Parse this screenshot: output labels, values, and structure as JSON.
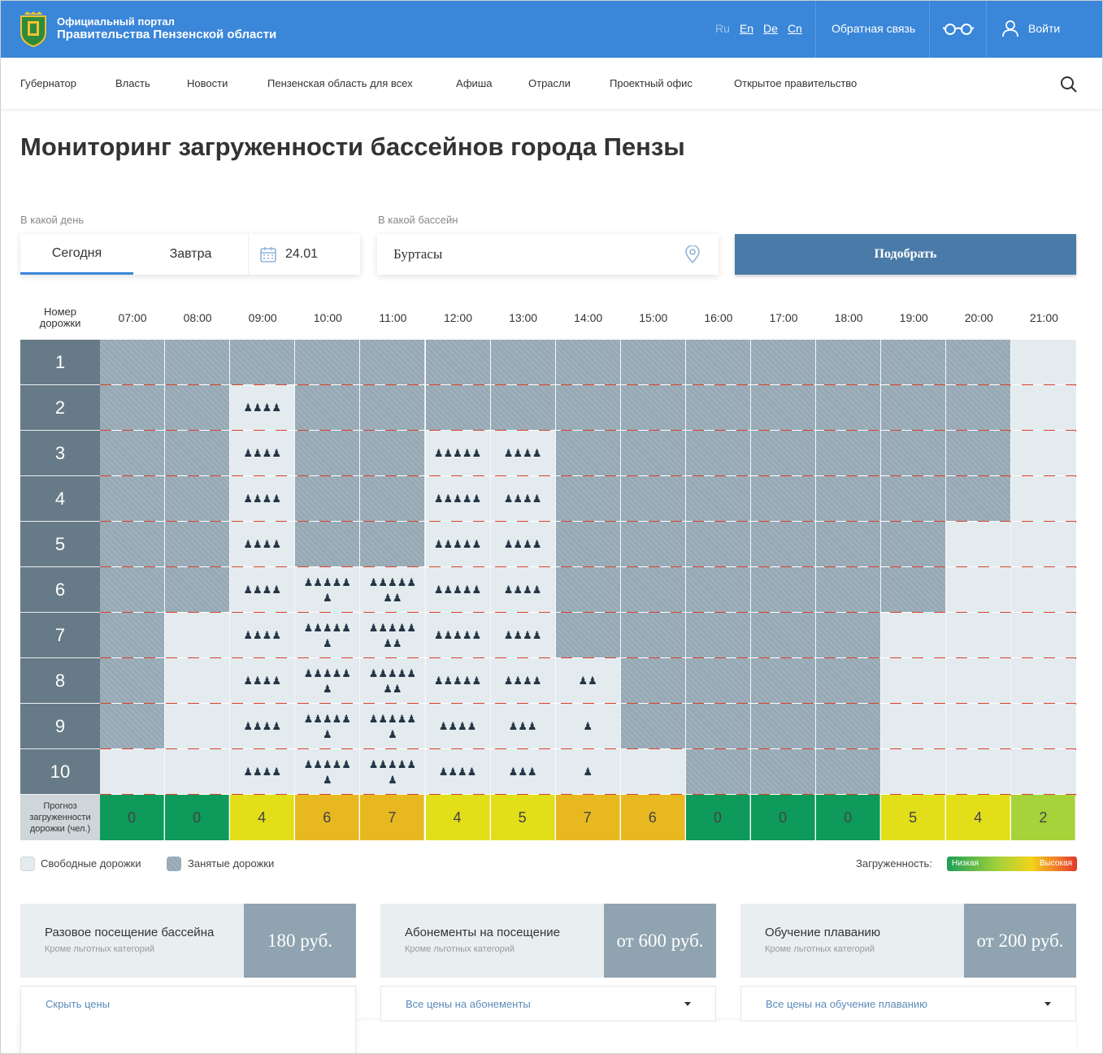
{
  "header": {
    "brand_line1": "Официальный портал",
    "brand_line2": "Правительства Пензенской области",
    "langs": [
      "Ru",
      "En",
      "De",
      "Cn"
    ],
    "feedback": "Обратная связь",
    "login": "Войти"
  },
  "nav": [
    "Губернатор",
    "Власть",
    "Новости",
    "Пензенская область для всех",
    "Афиша",
    "Отрасли",
    "Проектный офис",
    "Открытое правительство"
  ],
  "page_title": "Мониторинг загруженности бассейнов города Пензы",
  "filters": {
    "day_label": "В какой день",
    "today": "Сегодня",
    "tomorrow": "Завтра",
    "date": "24.01",
    "pool_label": "В какой бассейн",
    "pool_value": "Буртасы",
    "submit": "Подобрать"
  },
  "schedule": {
    "lane_header": [
      "Номер",
      "дорожки"
    ],
    "hours": [
      "07:00",
      "08:00",
      "09:00",
      "10:00",
      "11:00",
      "12:00",
      "13:00",
      "14:00",
      "15:00",
      "16:00",
      "17:00",
      "18:00",
      "19:00",
      "20:00",
      "21:00"
    ],
    "lanes": [
      "1",
      "2",
      "3",
      "4",
      "5",
      "6",
      "7",
      "8",
      "9",
      "10"
    ],
    "cells": [
      [
        -1,
        -1,
        -1,
        -1,
        -1,
        -1,
        -1,
        -1,
        -1,
        -1,
        -1,
        -1,
        -1,
        -1,
        0
      ],
      [
        -1,
        -1,
        4,
        -1,
        -1,
        -1,
        -1,
        -1,
        -1,
        -1,
        -1,
        -1,
        -1,
        -1,
        0
      ],
      [
        -1,
        -1,
        4,
        -1,
        -1,
        5,
        4,
        -1,
        -1,
        -1,
        -1,
        -1,
        -1,
        -1,
        0
      ],
      [
        -1,
        -1,
        4,
        -1,
        -1,
        5,
        4,
        -1,
        -1,
        -1,
        -1,
        -1,
        -1,
        -1,
        0
      ],
      [
        -1,
        -1,
        4,
        -1,
        -1,
        5,
        4,
        -1,
        -1,
        -1,
        -1,
        -1,
        -1,
        0,
        0
      ],
      [
        -1,
        -1,
        4,
        6,
        7,
        5,
        4,
        -1,
        -1,
        -1,
        -1,
        -1,
        -1,
        0,
        0
      ],
      [
        -1,
        0,
        4,
        6,
        7,
        5,
        4,
        -1,
        -1,
        -1,
        -1,
        -1,
        0,
        0,
        0
      ],
      [
        -1,
        0,
        4,
        6,
        7,
        5,
        4,
        2,
        -1,
        -1,
        -1,
        -1,
        0,
        0,
        0
      ],
      [
        -1,
        0,
        4,
        6,
        6,
        4,
        3,
        1,
        -1,
        -1,
        -1,
        -1,
        0,
        0,
        0
      ],
      [
        0,
        0,
        4,
        6,
        6,
        4,
        3,
        1,
        0,
        -1,
        -1,
        -1,
        0,
        0,
        0
      ]
    ],
    "forecast_label": [
      "Прогноз",
      "загруженности",
      "дорожки (чел.)"
    ],
    "forecast": [
      0,
      0,
      4,
      6,
      7,
      4,
      5,
      7,
      6,
      0,
      0,
      0,
      5,
      4,
      2
    ],
    "forecast_colors": [
      "#0e9a5a",
      "#0e9a5a",
      "#e2de1a",
      "#e8b820",
      "#e8b820",
      "#e2de1a",
      "#e2de1a",
      "#e8b820",
      "#e8b820",
      "#0e9a5a",
      "#0e9a5a",
      "#0e9a5a",
      "#e2de1a",
      "#e2de1a",
      "#a6d23a"
    ],
    "busy_color": "#96a9b5",
    "free_color": "#e4ebef",
    "rope_colors": [
      "#d9432e",
      "#ffffff"
    ]
  },
  "legend": {
    "free": "Свободные дорожки",
    "busy": "Занятые дорожки",
    "load": "Загруженность:",
    "low": "Низкая",
    "high": "Высокая"
  },
  "prices": [
    {
      "title": "Разовое посещение бассейна",
      "sub": "Кроме льготных категорий",
      "price": "180 руб.",
      "dropdown": "Скрыть цены"
    },
    {
      "title": "Абонементы на посещение",
      "sub": "Кроме льготных категорий",
      "price": "от 600 руб.",
      "dropdown": "Все цены на абонементы"
    },
    {
      "title": "Обучение плаванию",
      "sub": "Кроме льготных категорий",
      "price": "от 200 руб.",
      "dropdown": "Все цены на обучение плаванию"
    }
  ]
}
